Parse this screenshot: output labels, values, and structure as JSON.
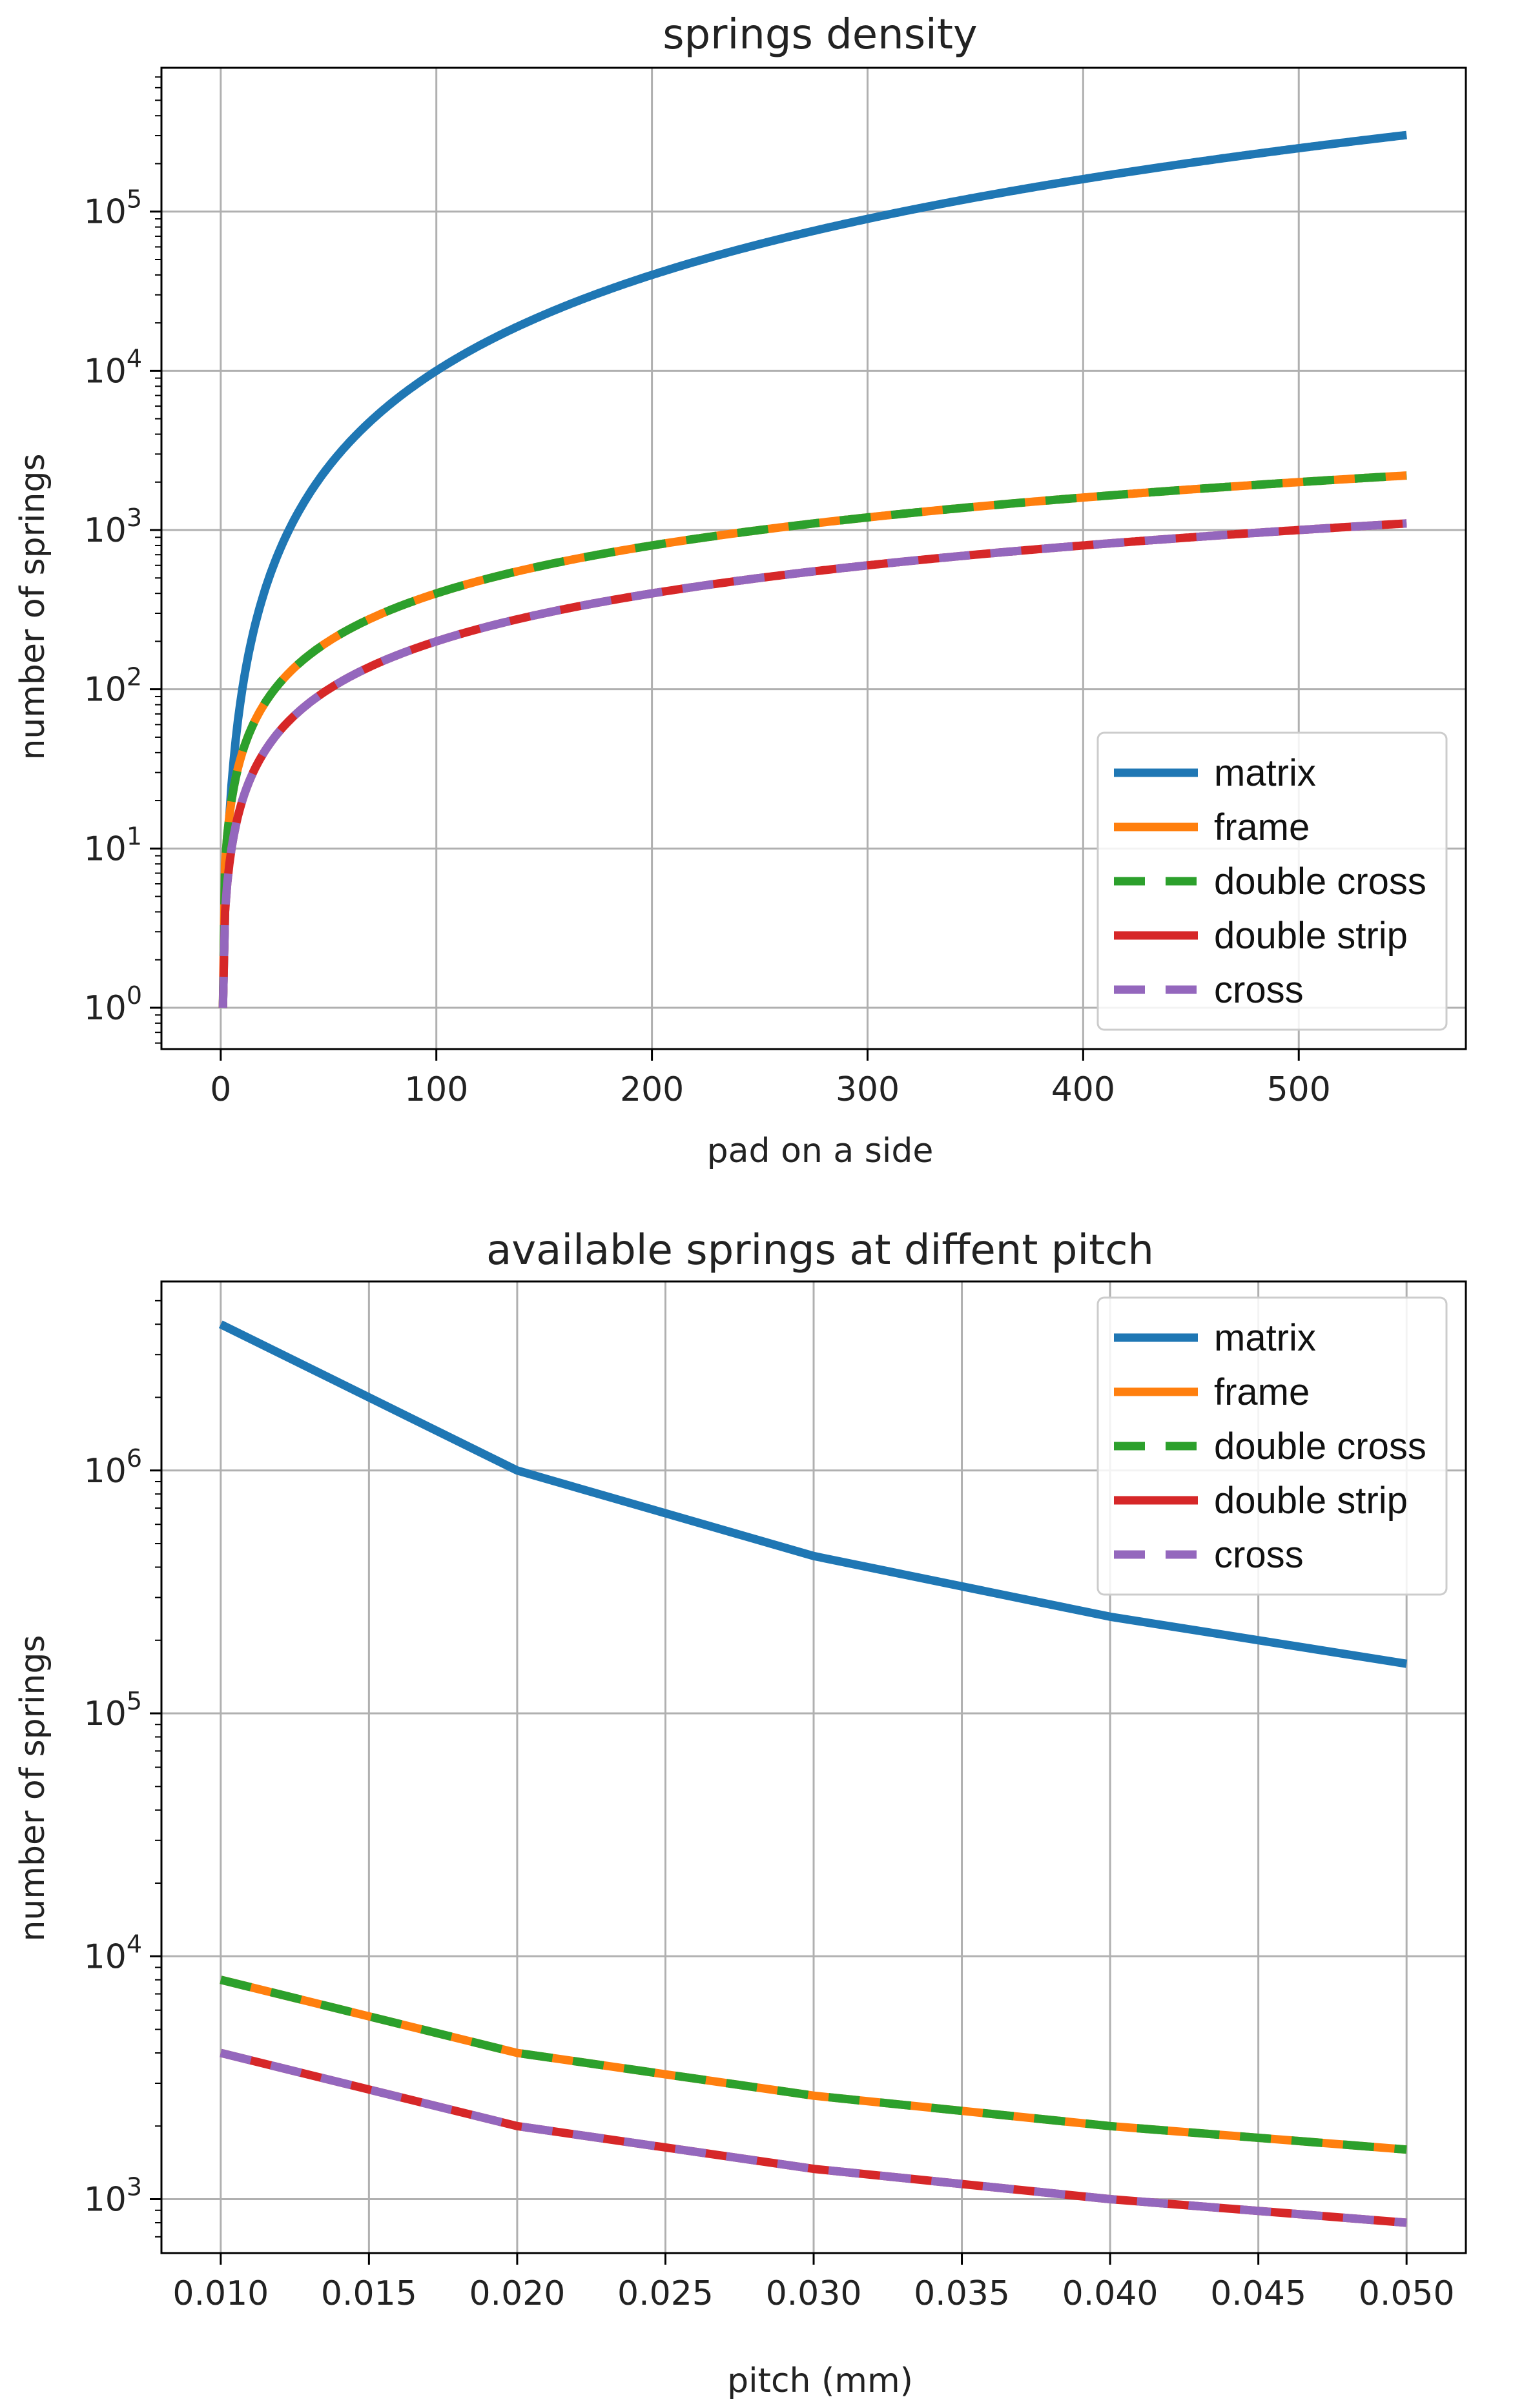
{
  "colors": {
    "matrix": "#1f77b4",
    "frame": "#ff7f0e",
    "double cross": "#2ca02c",
    "double strip": "#d62728",
    "cross": "#9467bd"
  },
  "chart_data": [
    {
      "type": "line",
      "title": "springs density",
      "xlabel": "pad on a side",
      "ylabel": "number of springs",
      "yscale": "log",
      "xlim": [
        -27.5,
        577.5
      ],
      "ylim": [
        0.55,
        800000
      ],
      "xticks": [
        0,
        100,
        200,
        300,
        400,
        500
      ],
      "xtick_labels": [
        "0",
        "100",
        "200",
        "300",
        "400",
        "500"
      ],
      "yticks": [
        1,
        10,
        100,
        1000,
        10000,
        100000
      ],
      "ytick_labels": [
        {
          "base": "10",
          "exp": "0"
        },
        {
          "base": "10",
          "exp": "1"
        },
        {
          "base": "10",
          "exp": "2"
        },
        {
          "base": "10",
          "exp": "3"
        },
        {
          "base": "10",
          "exp": "4"
        },
        {
          "base": "10",
          "exp": "5"
        }
      ],
      "grid": true,
      "legend_position": "lower-right",
      "x_range": [
        1,
        550
      ],
      "series": [
        {
          "name": "matrix",
          "formula": "n^2",
          "dashed": false
        },
        {
          "name": "frame",
          "formula": "4n",
          "dashed": false
        },
        {
          "name": "double cross",
          "formula": "4n",
          "dashed": true
        },
        {
          "name": "double strip",
          "formula": "2n",
          "dashed": false
        },
        {
          "name": "cross",
          "formula": "2n",
          "dashed": true
        }
      ]
    },
    {
      "type": "line",
      "title": "available springs at diffent pitch",
      "xlabel": "pitch (mm)",
      "ylabel": "number of springs",
      "yscale": "log",
      "xlim": [
        0.008,
        0.052
      ],
      "ylim": [
        600,
        6000000
      ],
      "xticks": [
        0.01,
        0.015,
        0.02,
        0.025,
        0.03,
        0.035,
        0.04,
        0.045,
        0.05
      ],
      "xtick_labels": [
        "0.010",
        "0.015",
        "0.020",
        "0.025",
        "0.030",
        "0.035",
        "0.040",
        "0.045",
        "0.050"
      ],
      "yticks": [
        1000,
        10000,
        100000,
        1000000
      ],
      "ytick_labels": [
        {
          "base": "10",
          "exp": "3"
        },
        {
          "base": "10",
          "exp": "4"
        },
        {
          "base": "10",
          "exp": "5"
        },
        {
          "base": "10",
          "exp": "6"
        }
      ],
      "grid": true,
      "legend_position": "top-right",
      "x": [
        0.01,
        0.02,
        0.03,
        0.04,
        0.05
      ],
      "series": [
        {
          "name": "matrix",
          "values": [
            4000000,
            1000000,
            444444,
            250000,
            160000
          ],
          "dashed": false
        },
        {
          "name": "frame",
          "values": [
            8000,
            4000,
            2667,
            2000,
            1600
          ],
          "dashed": false
        },
        {
          "name": "double cross",
          "values": [
            8000,
            4000,
            2667,
            2000,
            1600
          ],
          "dashed": true
        },
        {
          "name": "double strip",
          "values": [
            4000,
            2000,
            1333,
            1000,
            800
          ],
          "dashed": false
        },
        {
          "name": "cross",
          "values": [
            4000,
            2000,
            1333,
            1000,
            800
          ],
          "dashed": true
        }
      ]
    }
  ]
}
